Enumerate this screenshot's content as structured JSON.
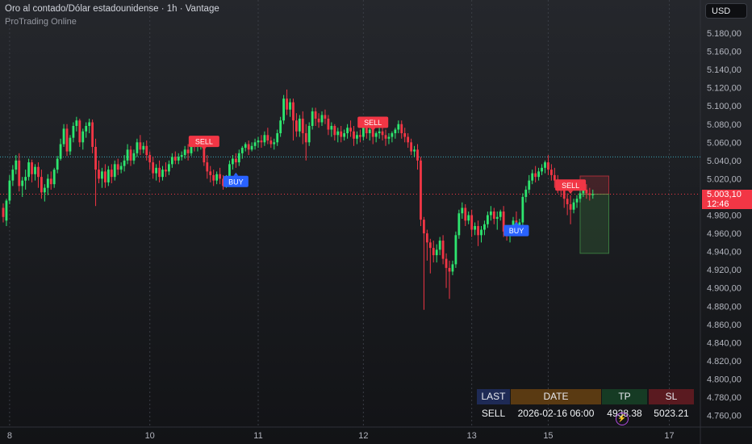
{
  "header": {
    "symbol_title": "Oro al contado/Dólar estadounidense · 1h · Vantage",
    "indicator_name": "ProTrading Online"
  },
  "currency_button": "USD",
  "price_axis": {
    "ticks": [
      "5.180,00",
      "5.160,00",
      "5.140,00",
      "5.120,00",
      "5.100,00",
      "5.080,00",
      "5.060,00",
      "5.040,00",
      "5.020,00",
      "4.980,00",
      "4.960,00",
      "4.940,00",
      "4.920,00",
      "4.900,00",
      "4.880,00",
      "4.860,00",
      "4.840,00",
      "4.820,00",
      "4.800,00",
      "4.780,00",
      "4.760,00"
    ],
    "tick_values": [
      5180,
      5160,
      5140,
      5120,
      5100,
      5080,
      5060,
      5040,
      5020,
      4980,
      4960,
      4940,
      4920,
      4900,
      4880,
      4860,
      4840,
      4820,
      4800,
      4780,
      4760
    ]
  },
  "current_price": {
    "label": "5.003,10",
    "countdown": "12:46",
    "value": 5003.1
  },
  "reference_line_value": 5044,
  "time_axis": {
    "labels": [
      "8",
      "10",
      "11",
      "12",
      "13",
      "15",
      "17"
    ],
    "label_bars": [
      2,
      46,
      80,
      113,
      147,
      171,
      209
    ]
  },
  "signal_markers": [
    {
      "text": "SELL",
      "bar": 63,
      "price": 5061,
      "kind": "sell"
    },
    {
      "text": "BUY",
      "bar": 73,
      "price": 5017,
      "kind": "buy"
    },
    {
      "text": "SELL",
      "bar": 116,
      "price": 5082,
      "kind": "sell"
    },
    {
      "text": "BUY",
      "bar": 161,
      "price": 4963,
      "kind": "buy"
    },
    {
      "text": "SELL",
      "bar": 178,
      "price": 5013,
      "kind": "sell"
    }
  ],
  "position_box": {
    "start_bar": 181,
    "end_bar": 190,
    "entry": 5003,
    "stop_loss": 5023,
    "take_profit": 4938
  },
  "signal_table": {
    "headers": [
      "LAST",
      "DATE",
      "TP",
      "SL"
    ],
    "values": [
      "SELL",
      "2026-02-16 06:00",
      "4938.38",
      "5023.21"
    ]
  },
  "chart_data": {
    "type": "candlestick",
    "candles": [
      [
        4988,
        4993,
        4978,
        4972
      ],
      [
        4974,
        4998,
        4996,
        4968
      ],
      [
        4996,
        5024,
        5018,
        4992
      ],
      [
        5018,
        5035,
        5030,
        5012
      ],
      [
        5030,
        5046,
        5040,
        5025
      ],
      [
        5040,
        5048,
        5012,
        5006
      ],
      [
        5012,
        5022,
        5018,
        5000
      ],
      [
        5018,
        5030,
        5022,
        5008
      ],
      [
        5022,
        5042,
        5038,
        5018
      ],
      [
        5038,
        5041,
        5025,
        5016
      ],
      [
        5025,
        5036,
        5033,
        5018
      ],
      [
        5033,
        5038,
        5022,
        5010
      ],
      [
        5022,
        5030,
        5005,
        4998
      ],
      [
        5005,
        5014,
        5010,
        4995
      ],
      [
        5010,
        5025,
        5020,
        5002
      ],
      [
        5020,
        5028,
        5014,
        5008
      ],
      [
        5014,
        5032,
        5030,
        5010
      ],
      [
        5030,
        5045,
        5042,
        5026
      ],
      [
        5042,
        5064,
        5058,
        5040
      ],
      [
        5058,
        5080,
        5075,
        5055
      ],
      [
        5075,
        5080,
        5050,
        5045
      ],
      [
        5050,
        5068,
        5065,
        5046
      ],
      [
        5065,
        5082,
        5078,
        5060
      ],
      [
        5078,
        5088,
        5084,
        5072
      ],
      [
        5084,
        5086,
        5060,
        5055
      ],
      [
        5060,
        5075,
        5072,
        5052
      ],
      [
        5072,
        5082,
        5078,
        5065
      ],
      [
        5078,
        5086,
        5082,
        5070
      ],
      [
        5082,
        5085,
        5055,
        5048
      ],
      [
        5055,
        5064,
        5030,
        4990
      ],
      [
        5030,
        5040,
        5020,
        5015
      ],
      [
        5020,
        5032,
        5028,
        5010
      ],
      [
        5028,
        5036,
        5016,
        5010
      ],
      [
        5016,
        5034,
        5030,
        5012
      ],
      [
        5030,
        5036,
        5022,
        5015
      ],
      [
        5022,
        5040,
        5036,
        5018
      ],
      [
        5036,
        5042,
        5030,
        5024
      ],
      [
        5030,
        5038,
        5034,
        5026
      ],
      [
        5034,
        5046,
        5040,
        5028
      ],
      [
        5040,
        5058,
        5052,
        5036
      ],
      [
        5052,
        5056,
        5040,
        5034
      ],
      [
        5040,
        5052,
        5048,
        5036
      ],
      [
        5048,
        5064,
        5060,
        5044
      ],
      [
        5060,
        5068,
        5052,
        5046
      ],
      [
        5052,
        5060,
        5056,
        5048
      ],
      [
        5056,
        5062,
        5046,
        5040
      ],
      [
        5046,
        5050,
        5038,
        5030
      ],
      [
        5038,
        5044,
        5026,
        5020
      ],
      [
        5026,
        5036,
        5032,
        5018
      ],
      [
        5032,
        5040,
        5022,
        5016
      ],
      [
        5022,
        5034,
        5030,
        5018
      ],
      [
        5030,
        5038,
        5028,
        5022
      ],
      [
        5028,
        5040,
        5036,
        5024
      ],
      [
        5036,
        5048,
        5044,
        5032
      ],
      [
        5044,
        5050,
        5040,
        5036
      ],
      [
        5040,
        5048,
        5044,
        5036
      ],
      [
        5044,
        5050,
        5046,
        5040
      ],
      [
        5046,
        5056,
        5052,
        5042
      ],
      [
        5052,
        5058,
        5048,
        5040
      ],
      [
        5048,
        5062,
        5058,
        5045
      ],
      [
        5058,
        5066,
        5055,
        5050
      ],
      [
        5055,
        5062,
        5058,
        5050
      ],
      [
        5058,
        5064,
        5060,
        5052
      ],
      [
        5060,
        5062,
        5038,
        5034
      ],
      [
        5038,
        5046,
        5028,
        5020
      ],
      [
        5028,
        5034,
        5024,
        5016
      ],
      [
        5024,
        5030,
        5018,
        5012
      ],
      [
        5018,
        5028,
        5025,
        5014
      ],
      [
        5025,
        5032,
        5020,
        5014
      ],
      [
        5020,
        5024,
        5012,
        5008
      ],
      [
        5012,
        5024,
        5020,
        5010
      ],
      [
        5020,
        5040,
        5036,
        5016
      ],
      [
        5036,
        5046,
        5042,
        5030
      ],
      [
        5042,
        5048,
        5038,
        5032
      ],
      [
        5038,
        5052,
        5048,
        5034
      ],
      [
        5048,
        5056,
        5054,
        5042
      ],
      [
        5054,
        5060,
        5058,
        5050
      ],
      [
        5058,
        5062,
        5052,
        5046
      ],
      [
        5052,
        5060,
        5056,
        5050
      ],
      [
        5056,
        5064,
        5060,
        5052
      ],
      [
        5060,
        5066,
        5062,
        5054
      ],
      [
        5062,
        5068,
        5060,
        5054
      ],
      [
        5060,
        5072,
        5068,
        5056
      ],
      [
        5068,
        5076,
        5062,
        5058
      ],
      [
        5062,
        5066,
        5058,
        5054
      ],
      [
        5058,
        5064,
        5060,
        5052
      ],
      [
        5060,
        5074,
        5070,
        5056
      ],
      [
        5070,
        5088,
        5084,
        5066
      ],
      [
        5084,
        5112,
        5108,
        5080
      ],
      [
        5108,
        5118,
        5096,
        5090
      ],
      [
        5096,
        5108,
        5104,
        5088
      ],
      [
        5104,
        5108,
        5084,
        5062
      ],
      [
        5084,
        5092,
        5072,
        5066
      ],
      [
        5072,
        5090,
        5086,
        5066
      ],
      [
        5086,
        5094,
        5070,
        5058
      ],
      [
        5070,
        5080,
        5060,
        5040
      ],
      [
        5060,
        5082,
        5078,
        5056
      ],
      [
        5078,
        5098,
        5094,
        5074
      ],
      [
        5094,
        5098,
        5086,
        5078
      ],
      [
        5086,
        5092,
        5082,
        5076
      ],
      [
        5082,
        5094,
        5090,
        5078
      ],
      [
        5090,
        5096,
        5086,
        5080
      ],
      [
        5086,
        5090,
        5074,
        5068
      ],
      [
        5074,
        5082,
        5078,
        5066
      ],
      [
        5078,
        5080,
        5068,
        5062
      ],
      [
        5068,
        5076,
        5072,
        5060
      ],
      [
        5072,
        5078,
        5066,
        5060
      ],
      [
        5066,
        5074,
        5070,
        5062
      ],
      [
        5070,
        5080,
        5076,
        5064
      ],
      [
        5076,
        5084,
        5072,
        5066
      ],
      [
        5072,
        5078,
        5064,
        5056
      ],
      [
        5064,
        5072,
        5068,
        5058
      ],
      [
        5068,
        5074,
        5066,
        5060
      ],
      [
        5066,
        5080,
        5076,
        5062
      ],
      [
        5076,
        5080,
        5070,
        5064
      ],
      [
        5070,
        5078,
        5074,
        5062
      ],
      [
        5074,
        5080,
        5066,
        5058
      ],
      [
        5066,
        5072,
        5070,
        5060
      ],
      [
        5070,
        5076,
        5072,
        5064
      ],
      [
        5072,
        5078,
        5068,
        5062
      ],
      [
        5068,
        5074,
        5064,
        5056
      ],
      [
        5064,
        5070,
        5066,
        5058
      ],
      [
        5066,
        5072,
        5070,
        5060
      ],
      [
        5070,
        5076,
        5074,
        5064
      ],
      [
        5074,
        5084,
        5080,
        5070
      ],
      [
        5080,
        5084,
        5070,
        5064
      ],
      [
        5070,
        5076,
        5066,
        5060
      ],
      [
        5066,
        5070,
        5060,
        5054
      ],
      [
        5060,
        5064,
        5050,
        5046
      ],
      [
        5050,
        5056,
        5052,
        5044
      ],
      [
        5052,
        5058,
        5040,
        5030
      ],
      [
        5040,
        5044,
        4975,
        4968
      ],
      [
        4975,
        4978,
        4960,
        4876
      ],
      [
        4960,
        4964,
        4950,
        4930
      ],
      [
        4950,
        4954,
        4944,
        4916
      ],
      [
        4944,
        4952,
        4936,
        4928
      ],
      [
        4936,
        4948,
        4942,
        4928
      ],
      [
        4942,
        4956,
        4952,
        4936
      ],
      [
        4952,
        4958,
        4932,
        4926
      ],
      [
        4932,
        4938,
        4922,
        4900
      ],
      [
        4922,
        4930,
        4918,
        4888
      ],
      [
        4918,
        4930,
        4926,
        4914
      ],
      [
        4926,
        4962,
        4958,
        4922
      ],
      [
        4958,
        4986,
        4982,
        4954
      ],
      [
        4982,
        4994,
        4988,
        4976
      ],
      [
        4988,
        4992,
        4974,
        4968
      ],
      [
        4974,
        4984,
        4980,
        4970
      ],
      [
        4980,
        4986,
        4964,
        4956
      ],
      [
        4964,
        4972,
        4968,
        4958
      ],
      [
        4968,
        4974,
        4958,
        4946
      ],
      [
        4958,
        4968,
        4964,
        4950
      ],
      [
        4964,
        4974,
        4970,
        4958
      ],
      [
        4970,
        4984,
        4980,
        4966
      ],
      [
        4980,
        4990,
        4984,
        4974
      ],
      [
        4984,
        4988,
        4976,
        4970
      ],
      [
        4976,
        4984,
        4978,
        4964
      ],
      [
        4978,
        4986,
        4984,
        4974
      ],
      [
        4984,
        4990,
        4962,
        4956
      ],
      [
        4962,
        4968,
        4958,
        4952
      ],
      [
        4958,
        4966,
        4962,
        4950
      ],
      [
        4962,
        4978,
        4974,
        4958
      ],
      [
        4974,
        4984,
        4966,
        4960
      ],
      [
        4966,
        4976,
        4972,
        4962
      ],
      [
        4972,
        5004,
        5000,
        4968
      ],
      [
        5000,
        5012,
        5008,
        4994
      ],
      [
        5008,
        5024,
        5018,
        5004
      ],
      [
        5018,
        5030,
        5026,
        5014
      ],
      [
        5026,
        5034,
        5022,
        5016
      ],
      [
        5022,
        5032,
        5028,
        5018
      ],
      [
        5028,
        5036,
        5032,
        5024
      ],
      [
        5032,
        5040,
        5038,
        5026
      ],
      [
        5038,
        5046,
        5030,
        5024
      ],
      [
        5030,
        5036,
        5024,
        5018
      ],
      [
        5024,
        5032,
        5018,
        5010
      ],
      [
        5018,
        5024,
        5012,
        5004
      ],
      [
        5012,
        5018,
        5008,
        5000
      ],
      [
        5008,
        5012,
        4998,
        4988
      ],
      [
        4998,
        5004,
        4992,
        4980
      ],
      [
        4992,
        5002,
        4986,
        4970
      ],
      [
        4986,
        4998,
        4994,
        4982
      ],
      [
        4994,
        5002,
        4998,
        4988
      ],
      [
        4998,
        5008,
        5004,
        4994
      ],
      [
        5004,
        5012,
        5008,
        5000
      ],
      [
        5008,
        5014,
        5004,
        4998
      ],
      [
        5004,
        5010,
        5002,
        4996
      ],
      [
        5002,
        5008,
        5003,
        4998
      ]
    ],
    "candle_order": [
      "open",
      "high",
      "close",
      "low"
    ]
  }
}
